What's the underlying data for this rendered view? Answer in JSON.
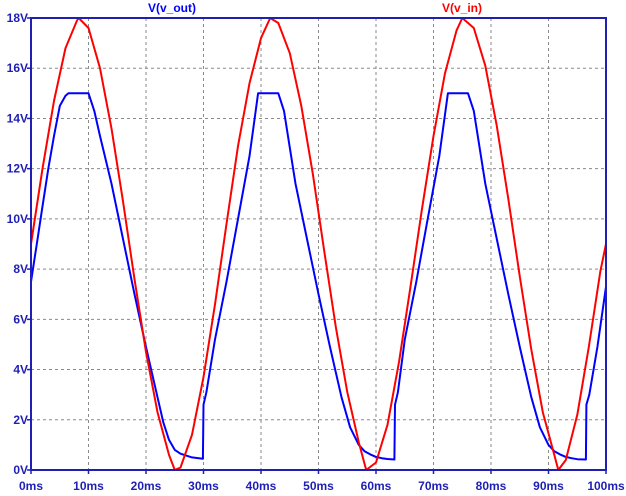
{
  "chart_data": {
    "type": "line",
    "title": "",
    "xlabel": "",
    "ylabel": "",
    "x_unit": "ms",
    "y_unit": "V",
    "xlim": [
      0,
      100
    ],
    "ylim": [
      0,
      18
    ],
    "grid": true,
    "legend_placement": "top",
    "x_ticks": [
      "0ms",
      "10ms",
      "20ms",
      "30ms",
      "40ms",
      "50ms",
      "60ms",
      "70ms",
      "80ms",
      "90ms",
      "100ms"
    ],
    "y_ticks": [
      "0V",
      "2V",
      "4V",
      "6V",
      "8V",
      "10V",
      "12V",
      "14V",
      "16V",
      "18V"
    ],
    "series": [
      {
        "name": "V(v_out)",
        "color": "#0000ff",
        "x": [
          0,
          1,
          2,
          3,
          4,
          5,
          6,
          6.5,
          10,
          11,
          12,
          14,
          16,
          18,
          20,
          22,
          23,
          24,
          25,
          26,
          28,
          29.9,
          30.0,
          30.5,
          32,
          34,
          36,
          38,
          39.5,
          43,
          44,
          46,
          48,
          50,
          52,
          54,
          55.5,
          57,
          58,
          59,
          60,
          61,
          62,
          63.2,
          63.3,
          63.8,
          65,
          67,
          69,
          71,
          72.5,
          76,
          77,
          79,
          81,
          83,
          85,
          87,
          88.5,
          90,
          91,
          92,
          93,
          94,
          95,
          96.5,
          96.6,
          97.1,
          98.5,
          100
        ],
        "y": [
          7.5,
          9.0,
          10.5,
          12.0,
          13.3,
          14.5,
          14.9,
          15.0,
          15.0,
          14.3,
          13.3,
          11.4,
          9.2,
          7.0,
          4.9,
          2.9,
          1.9,
          1.2,
          0.8,
          0.65,
          0.5,
          0.45,
          2.6,
          3.1,
          5.2,
          7.5,
          10.0,
          12.5,
          15.0,
          15.0,
          14.3,
          11.4,
          9.2,
          7.0,
          4.9,
          2.9,
          1.7,
          1.0,
          0.75,
          0.62,
          0.52,
          0.47,
          0.44,
          0.42,
          2.6,
          3.1,
          5.2,
          7.5,
          10.0,
          12.5,
          15.0,
          15.0,
          14.3,
          11.4,
          9.2,
          7.0,
          4.9,
          2.9,
          1.7,
          1.0,
          0.75,
          0.62,
          0.52,
          0.47,
          0.43,
          0.42,
          2.6,
          3.0,
          4.9,
          7.3
        ]
      },
      {
        "name": "V(v_in)",
        "color": "#ff0000",
        "x": [
          0,
          2,
          4,
          6,
          8,
          8.3,
          10,
          12,
          14,
          16,
          18,
          20,
          22,
          24,
          25,
          26,
          28,
          30,
          32,
          34,
          36,
          38,
          40,
          41.6,
          43,
          45,
          47,
          49,
          51,
          53,
          55,
          57,
          58.3,
          60,
          62,
          64,
          66,
          68,
          70,
          72,
          74,
          75,
          77,
          79,
          81,
          83,
          85,
          87,
          89,
          91,
          91.7,
          93,
          95,
          97,
          99,
          100
        ],
        "y": [
          9.0,
          12.0,
          14.7,
          16.8,
          17.9,
          18.0,
          17.6,
          16.0,
          13.6,
          10.7,
          7.6,
          4.7,
          2.3,
          0.6,
          0.0,
          0.1,
          1.4,
          3.7,
          6.6,
          9.8,
          12.9,
          15.4,
          17.2,
          18.0,
          17.8,
          16.6,
          14.5,
          11.8,
          8.7,
          5.7,
          3.1,
          1.1,
          0.0,
          0.3,
          1.8,
          4.3,
          7.3,
          10.4,
          13.3,
          15.8,
          17.5,
          18.0,
          17.6,
          16.1,
          13.7,
          10.8,
          7.7,
          4.8,
          2.3,
          0.6,
          0.0,
          0.4,
          2.2,
          4.9,
          7.9,
          9.0
        ]
      }
    ]
  }
}
